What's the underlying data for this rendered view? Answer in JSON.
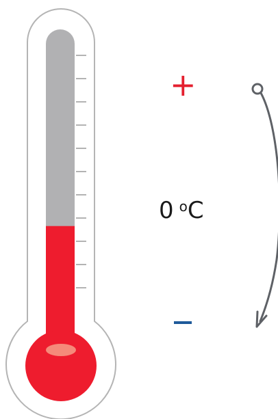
{
  "thermometer": {
    "level_fraction": 0.38,
    "tick_count": 11,
    "colors": {
      "outline": "#b4b4b4",
      "tube_empty": "#b1b1b3",
      "mercury": "#ee1c2e",
      "highlight": "#f58a7a",
      "ticks": "#a0a0a0"
    }
  },
  "labels": {
    "plus": "+",
    "minus": "–",
    "value": "0",
    "degree": "o",
    "unit": "C"
  },
  "colors": {
    "plus": "#e4202f",
    "minus": "#1f5a9a",
    "arrow": "#5e6166",
    "text": "#1a1a1a"
  },
  "icons": {
    "arrow": "curved-arrow-down-icon"
  }
}
